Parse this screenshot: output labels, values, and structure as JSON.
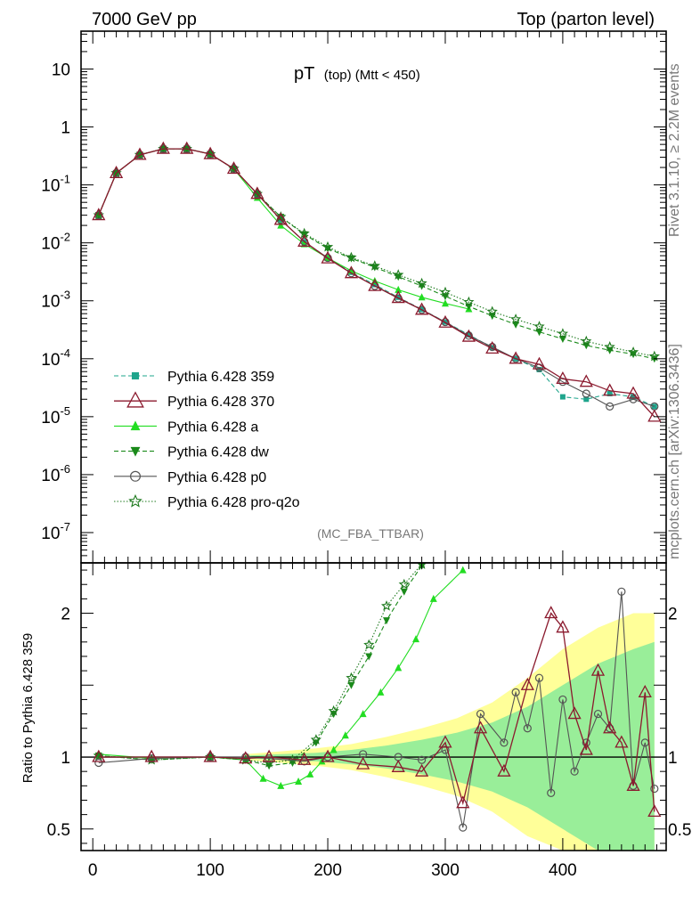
{
  "header": {
    "left": "7000 GeV pp",
    "right": "Top (parton level)"
  },
  "plot_title": {
    "main": "pT",
    "sub": "(top) (Mtt < 450)"
  },
  "side_labels": {
    "rivet": "Rivet 3.1.10, ≥ 2.2M events",
    "mcplots": "mcplots.cern.ch [arXiv:1306.3436]"
  },
  "analysis_tag": "(MC_FBA_TTBAR)",
  "colors": {
    "p359": "#1fa58c",
    "p370": "#8b1a2e",
    "pa": "#22dd22",
    "pdw": "#1a8a1a",
    "pp0": "#555555",
    "pq2o": "#1e7a1e",
    "band_outer": "#ffff99",
    "band_inner": "#99ee99"
  },
  "chart_data": [
    {
      "type": "line",
      "title": "pT (top) (Mtt < 450)",
      "xlabel": "",
      "ylabel": "",
      "yscale": "log",
      "xlim": [
        -10,
        488
      ],
      "ylim": [
        3e-08,
        45
      ],
      "y_ticks": [
        "10",
        "1",
        "10^-1",
        "10^-2",
        "10^-3",
        "10^-4",
        "10^-5",
        "10^-6",
        "10^-7"
      ],
      "legend": {
        "placement": "bottom-left",
        "entries": [
          {
            "key": "p359",
            "label": "Pythia 6.428 359",
            "marker": "square",
            "line": "dashed"
          },
          {
            "key": "p370",
            "label": "Pythia 6.428 370",
            "marker": "triangle-open",
            "line": "solid"
          },
          {
            "key": "pa",
            "label": "Pythia 6.428 a",
            "marker": "triangle",
            "line": "solid"
          },
          {
            "key": "pdw",
            "label": "Pythia 6.428 dw",
            "marker": "triangle-down",
            "line": "dashed"
          },
          {
            "key": "pp0",
            "label": "Pythia 6.428 p0",
            "marker": "circle-open",
            "line": "solid"
          },
          {
            "key": "pq2o",
            "label": "Pythia 6.428 pro-q2o",
            "marker": "star",
            "line": "dotted"
          }
        ]
      },
      "series": [
        {
          "key": "p359",
          "name": "Pythia 6.428 359",
          "x": [
            5,
            20,
            40,
            60,
            80,
            100,
            120,
            140,
            160,
            180,
            200,
            220,
            240,
            260,
            280,
            300,
            320,
            340,
            360,
            380,
            400,
            420,
            440,
            460,
            478
          ],
          "y": [
            0.03,
            0.16,
            0.33,
            0.42,
            0.42,
            0.34,
            0.19,
            0.07,
            0.025,
            0.0105,
            0.0055,
            0.0031,
            0.0019,
            0.00115,
            0.00071,
            0.00043,
            0.00026,
            0.000155,
            0.0001,
            6.5e-05,
            2.2e-05,
            2e-05,
            2.5e-05,
            2.2e-05,
            1.5e-05
          ]
        },
        {
          "key": "p370",
          "name": "Pythia 6.428 370",
          "x": [
            5,
            20,
            40,
            60,
            80,
            100,
            120,
            140,
            160,
            180,
            200,
            220,
            240,
            260,
            280,
            300,
            320,
            340,
            360,
            380,
            400,
            420,
            440,
            460,
            478
          ],
          "y": [
            0.03,
            0.16,
            0.33,
            0.42,
            0.42,
            0.34,
            0.19,
            0.07,
            0.025,
            0.0105,
            0.0054,
            0.003,
            0.0018,
            0.00112,
            0.0007,
            0.00042,
            0.00024,
            0.00015,
            0.0001,
            8e-05,
            4.5e-05,
            4e-05,
            2.8e-05,
            2.5e-05,
            1e-05
          ]
        },
        {
          "key": "pa",
          "name": "Pythia 6.428 a",
          "x": [
            5,
            20,
            40,
            60,
            80,
            100,
            120,
            140,
            160,
            180,
            200,
            220,
            240,
            260,
            280,
            300,
            320
          ],
          "y": [
            0.03,
            0.16,
            0.33,
            0.42,
            0.42,
            0.34,
            0.19,
            0.06,
            0.02,
            0.0095,
            0.0055,
            0.0033,
            0.0022,
            0.00155,
            0.00115,
            0.0009,
            0.00072
          ]
        },
        {
          "key": "pdw",
          "name": "Pythia 6.428 dw",
          "x": [
            5,
            20,
            40,
            60,
            80,
            100,
            120,
            140,
            160,
            180,
            200,
            220,
            240,
            260,
            280,
            300,
            320,
            340,
            360,
            380,
            400,
            420,
            440,
            460,
            478
          ],
          "y": [
            0.03,
            0.16,
            0.33,
            0.42,
            0.42,
            0.34,
            0.19,
            0.07,
            0.028,
            0.014,
            0.008,
            0.0054,
            0.0038,
            0.0026,
            0.0018,
            0.0012,
            0.0008,
            0.00055,
            0.00039,
            0.00029,
            0.00022,
            0.00017,
            0.00014,
            0.00012,
            0.0001
          ]
        },
        {
          "key": "pp0",
          "name": "Pythia 6.428 p0",
          "x": [
            5,
            20,
            40,
            60,
            80,
            100,
            120,
            140,
            160,
            180,
            200,
            220,
            240,
            260,
            280,
            300,
            320,
            340,
            360,
            380,
            400,
            420,
            440,
            460,
            478
          ],
          "y": [
            0.03,
            0.16,
            0.33,
            0.42,
            0.42,
            0.34,
            0.19,
            0.07,
            0.025,
            0.0105,
            0.0055,
            0.003,
            0.0018,
            0.0011,
            0.0007,
            0.00043,
            0.00025,
            0.00016,
            0.0001,
            7e-05,
            4e-05,
            2.5e-05,
            1.5e-05,
            2e-05,
            1.5e-05
          ]
        },
        {
          "key": "pq2o",
          "name": "Pythia 6.428 pro-q2o",
          "x": [
            5,
            20,
            40,
            60,
            80,
            100,
            120,
            140,
            160,
            180,
            200,
            220,
            240,
            260,
            280,
            300,
            320,
            340,
            360,
            380,
            400,
            420,
            440,
            460,
            478
          ],
          "y": [
            0.03,
            0.16,
            0.33,
            0.42,
            0.42,
            0.34,
            0.19,
            0.07,
            0.028,
            0.0145,
            0.0085,
            0.0056,
            0.004,
            0.0028,
            0.002,
            0.0014,
            0.00095,
            0.00065,
            0.00048,
            0.00036,
            0.00027,
            0.0002,
            0.00016,
            0.00013,
            0.00011
          ]
        }
      ]
    },
    {
      "type": "line",
      "title": "",
      "xlabel": "",
      "ylabel": "Ratio to Pythia 6.428 359",
      "yscale": "linear",
      "xlim": [
        -10,
        488
      ],
      "ylim": [
        0.35,
        2.35
      ],
      "x_ticks": [
        0,
        100,
        200,
        300,
        400
      ],
      "y_ticks": [
        0.5,
        1,
        2
      ],
      "bands": {
        "x": [
          130,
          160,
          190,
          220,
          250,
          280,
          310,
          340,
          370,
          400,
          430,
          460,
          478
        ],
        "outer_half": [
          0.02,
          0.04,
          0.06,
          0.09,
          0.14,
          0.2,
          0.27,
          0.38,
          0.55,
          0.75,
          0.9,
          1.0,
          1.0
        ],
        "inner_half": [
          0.01,
          0.02,
          0.03,
          0.05,
          0.08,
          0.12,
          0.17,
          0.24,
          0.35,
          0.5,
          0.65,
          0.75,
          0.8
        ]
      },
      "series": [
        {
          "key": "p370",
          "name": "Pythia 6.428 370",
          "x": [
            5,
            50,
            100,
            130,
            150,
            180,
            200,
            230,
            260,
            280,
            300,
            315,
            330,
            350,
            370,
            390,
            400,
            410,
            420,
            430,
            440,
            450,
            460,
            470,
            478
          ],
          "y": [
            1.0,
            1.0,
            1.0,
            0.99,
            1.0,
            0.98,
            1.0,
            0.95,
            0.93,
            0.9,
            1.1,
            0.68,
            1.2,
            0.9,
            1.5,
            2.0,
            1.9,
            1.3,
            1.05,
            1.6,
            1.2,
            1.1,
            0.8,
            1.45,
            0.62
          ]
        },
        {
          "key": "pa",
          "name": "Pythia 6.428 a",
          "x": [
            5,
            50,
            100,
            130,
            145,
            160,
            175,
            185,
            195,
            205,
            215,
            230,
            245,
            260,
            275,
            290,
            315
          ],
          "y": [
            1.02,
            0.99,
            1.0,
            0.98,
            0.85,
            0.8,
            0.83,
            0.88,
            0.97,
            1.05,
            1.15,
            1.3,
            1.45,
            1.62,
            1.82,
            2.1,
            2.3
          ]
        },
        {
          "key": "pdw",
          "name": "Pythia 6.428 dw",
          "x": [
            5,
            50,
            100,
            130,
            150,
            170,
            190,
            205,
            220,
            235,
            250,
            265,
            280
          ],
          "y": [
            1.01,
            0.98,
            1.0,
            0.98,
            0.94,
            0.96,
            1.1,
            1.3,
            1.5,
            1.7,
            1.95,
            2.15,
            2.33
          ]
        },
        {
          "key": "pp0",
          "name": "Pythia 6.428 p0",
          "x": [
            5,
            50,
            100,
            130,
            150,
            180,
            200,
            230,
            260,
            280,
            300,
            315,
            330,
            350,
            360,
            370,
            380,
            390,
            400,
            410,
            420,
            430,
            440,
            450,
            460,
            470,
            478
          ],
          "y": [
            0.96,
            0.99,
            1.0,
            1.0,
            0.99,
            0.97,
            1.0,
            1.02,
            1.0,
            0.98,
            1.05,
            0.51,
            1.3,
            1.1,
            1.45,
            1.2,
            1.55,
            0.75,
            1.4,
            0.9,
            1.1,
            1.3,
            1.2,
            2.15,
            0.8,
            1.1,
            0.78
          ]
        },
        {
          "key": "pq2o",
          "name": "Pythia 6.428 pro-q2o",
          "x": [
            5,
            50,
            100,
            130,
            150,
            170,
            190,
            205,
            220,
            235,
            250,
            265,
            280
          ],
          "y": [
            1.01,
            0.98,
            1.0,
            0.98,
            0.96,
            0.98,
            1.12,
            1.32,
            1.55,
            1.78,
            2.05,
            2.2,
            2.34
          ]
        }
      ]
    }
  ]
}
